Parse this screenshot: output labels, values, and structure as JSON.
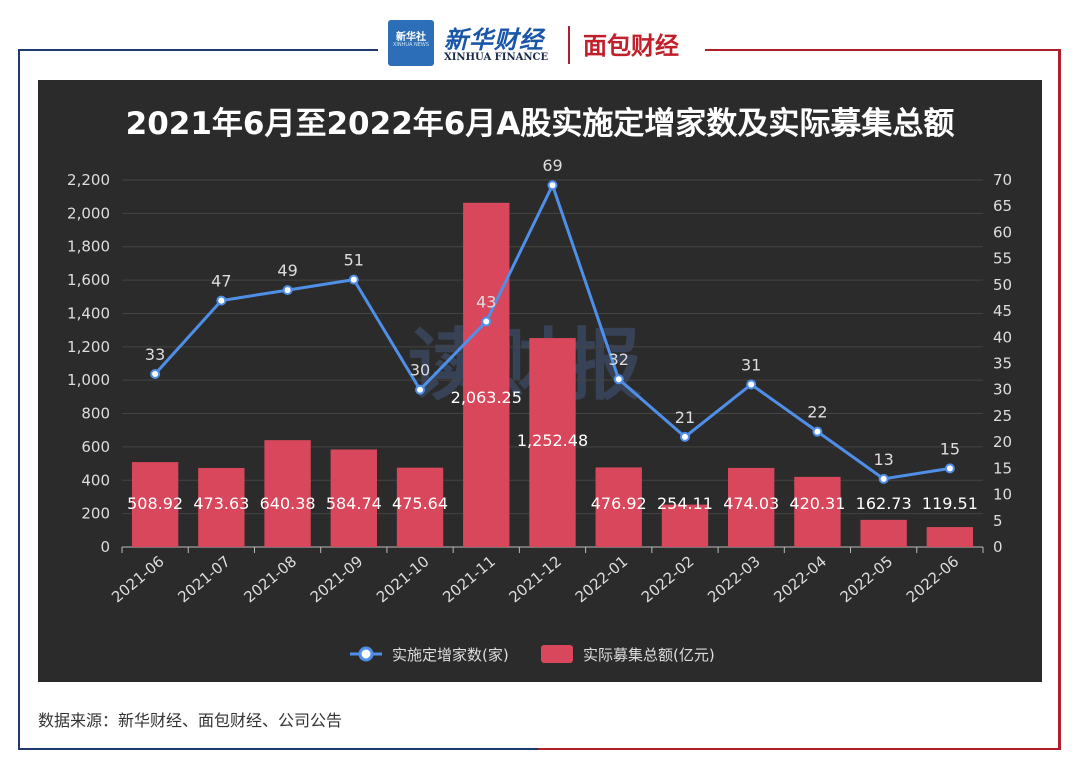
{
  "header": {
    "xinhua_logo_text": "新华社",
    "xinhua_logo_sub": "XINHUA NEWS",
    "xinhua_name": "新华财经",
    "xinhua_name_en": "XINHUA FINANCE",
    "mianbao_name": "面包财经"
  },
  "watermark": "读财报",
  "footer": {
    "source": "数据来源：新华财经、面包财经、公司公告"
  },
  "colors": {
    "panel_bg": "#2b2b2b",
    "bar": "#d9475c",
    "line": "#4f8fe8",
    "text": "#dddddd"
  },
  "chart_data": {
    "type": "bar",
    "title": "2021年6月至2022年6月A股实施定增家数及实际募集总额",
    "categories": [
      "2021-06",
      "2021-07",
      "2021-08",
      "2021-09",
      "2021-10",
      "2021-11",
      "2021-12",
      "2022-01",
      "2022-02",
      "2022-03",
      "2022-04",
      "2022-05",
      "2022-06"
    ],
    "series": [
      {
        "name": "实施定增家数(家)",
        "type": "line",
        "axis": "right",
        "values": [
          33,
          47,
          49,
          51,
          30,
          43,
          69,
          32,
          21,
          31,
          22,
          13,
          15
        ],
        "labels": [
          "33",
          "47",
          "49",
          "51",
          "30",
          "43",
          "69",
          "32",
          "21",
          "31",
          "22",
          "13",
          "15"
        ]
      },
      {
        "name": "实际募集总额(亿元)",
        "type": "bar",
        "axis": "left",
        "values": [
          508.92,
          473.63,
          640.38,
          584.74,
          475.64,
          2063.25,
          1252.48,
          476.92,
          254.11,
          474.03,
          420.31,
          162.73,
          119.51
        ],
        "labels": [
          "508.92",
          "473.63",
          "640.38",
          "584.74",
          "475.64",
          "2,063.25",
          "1,252.48",
          "476.92",
          "254.11",
          "474.03",
          "420.31",
          "162.73",
          "119.51"
        ]
      }
    ],
    "y_left": {
      "min": 0,
      "max": 2200,
      "ticks": [
        "0",
        "200",
        "400",
        "600",
        "800",
        "1,000",
        "1,200",
        "1,400",
        "1,600",
        "1,800",
        "2,000",
        "2,200"
      ]
    },
    "y_right": {
      "min": 0,
      "max": 70,
      "ticks": [
        "0",
        "5",
        "10",
        "15",
        "20",
        "25",
        "30",
        "35",
        "40",
        "45",
        "50",
        "55",
        "60",
        "65",
        "70"
      ]
    },
    "grid": true,
    "legend_position": "bottom"
  }
}
